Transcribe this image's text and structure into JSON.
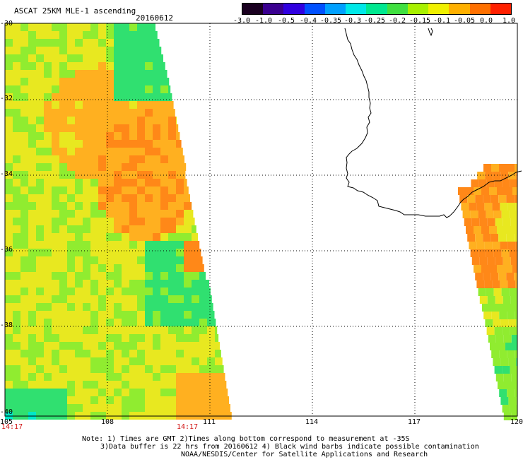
{
  "title": "ASCAT 25KM MLE-1 ascending",
  "date": "20160612",
  "colorbar": {
    "tick_labels": [
      "-3.0",
      "-1.0",
      "-0.5",
      "-0.4",
      "-0.35",
      "-0.3",
      "-0.25",
      "-0.2",
      "-0.15",
      "-0.1",
      "-0.05",
      "0.0",
      "1.0"
    ],
    "colors": [
      "#1a0020",
      "#3a0090",
      "#3000e0",
      "#0050ff",
      "#00a0ff",
      "#00e8e8",
      "#00e890",
      "#40e040",
      "#a8f000",
      "#f0f000",
      "#ffb000",
      "#ff7000",
      "#ff2000"
    ]
  },
  "map": {
    "lat_labels": [
      "-30",
      "-32",
      "-34",
      "-36",
      "-38",
      "-40"
    ],
    "lon_labels": [
      "105",
      "108",
      "111",
      "114",
      "117",
      "120"
    ],
    "swath_times": [
      "14:17",
      "14:17"
    ],
    "coastline": "Southwest Australia"
  },
  "notes": [
    "Note: 1) Times are GMT 2)Times along bottom correspond to measurement at -35S",
    "3)Data buffer is 22 hrs from 20160612 4) Black wind barbs indicate possible contamination",
    "NOAA/NESDIS/Center for Satellite Applications and Research"
  ]
}
